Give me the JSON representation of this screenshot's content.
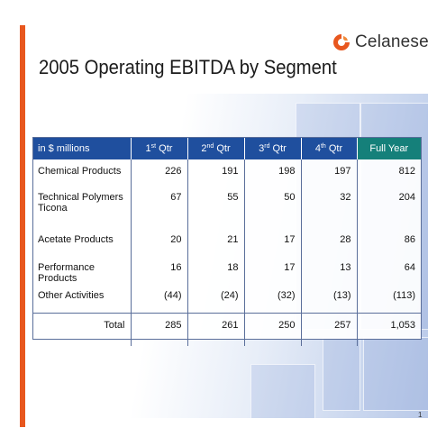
{
  "slide": {
    "title": "2005 Operating EBITDA by Segment",
    "page_number": "1",
    "logo_text": "Celanese",
    "accent_color": "#e8571e",
    "header_color": "#1f4f9e",
    "full_year_header_color": "#15807a"
  },
  "table": {
    "headers": {
      "label": "in $ millions",
      "q1": {
        "num": "1",
        "sup": "st",
        "suffix": " Qtr"
      },
      "q2": {
        "num": "2",
        "sup": "nd",
        "suffix": " Qtr"
      },
      "q3": {
        "num": "3",
        "sup": "rd",
        "suffix": " Qtr"
      },
      "q4": {
        "num": "4",
        "sup": "th",
        "suffix": " Qtr"
      },
      "full": "Full Year"
    },
    "rows": [
      {
        "label": "Chemical Products",
        "label2": "",
        "q1": "226",
        "q2": "191",
        "q3": "198",
        "q4": "197",
        "full": "812"
      },
      {
        "label": "Technical Polymers",
        "label2": "Ticona",
        "q1": "67",
        "q2": "55",
        "q3": "50",
        "q4": "32",
        "full": "204"
      },
      {
        "label": "Acetate Products",
        "label2": "",
        "q1": "20",
        "q2": "21",
        "q3": "17",
        "q4": "28",
        "full": "86"
      },
      {
        "label": "Performance Products",
        "label2": "",
        "q1": "16",
        "q2": "18",
        "q3": "17",
        "q4": "13",
        "full": "64"
      },
      {
        "label": "Other Activities",
        "label2": "",
        "q1": "(44)",
        "q2": "(24)",
        "q3": "(32)",
        "q4": "(13)",
        "full": "(113)"
      }
    ],
    "total": {
      "label": "Total",
      "q1": "285",
      "q2": "261",
      "q3": "250",
      "q4": "257",
      "full": "1,053"
    }
  }
}
